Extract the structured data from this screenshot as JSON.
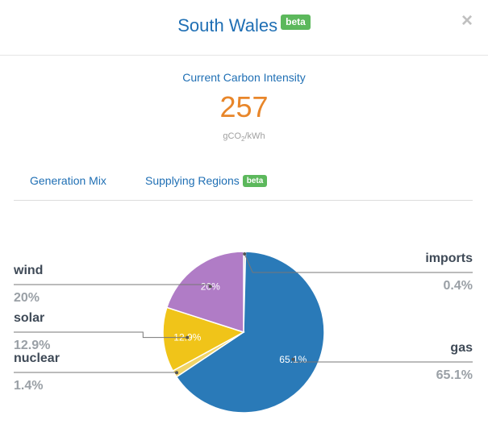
{
  "modal": {
    "title": "South Wales",
    "title_badge": "beta",
    "close_icon": "×"
  },
  "intensity": {
    "label": "Current Carbon Intensity",
    "value": "257",
    "unit_prefix": "gCO",
    "unit_sub": "2",
    "unit_suffix": "/kWh",
    "value_color": "#e8862a"
  },
  "tabs": [
    {
      "label": "Generation Mix"
    },
    {
      "label": "Supplying Regions",
      "badge": "beta"
    }
  ],
  "chart_data": {
    "type": "pie",
    "slices": [
      {
        "name": "imports",
        "value": 0.4,
        "label": "0.4%",
        "color": "#c8c8c8"
      },
      {
        "name": "gas",
        "value": 65.1,
        "label": "65.1%",
        "color": "#2a7ab8"
      },
      {
        "name": "nuclear",
        "value": 1.4,
        "label": "1.4%",
        "color": "#f0d468"
      },
      {
        "name": "solar",
        "value": 12.9,
        "label": "12.9%",
        "color": "#f0c419"
      },
      {
        "name": "wind",
        "value": 20,
        "label": "20%",
        "color": "#b07cc6"
      }
    ]
  }
}
